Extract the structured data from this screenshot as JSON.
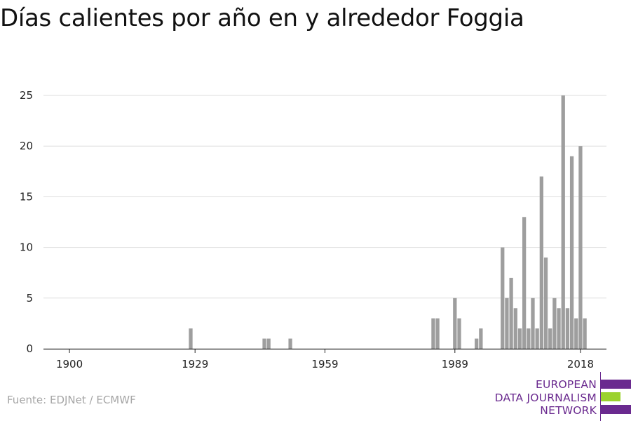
{
  "title": "Días calientes por año en y alrededor Foggia",
  "source": "Fuente: EDJNet / ECMWF",
  "logo": {
    "lines": [
      "EUROPEAN",
      "DATA JOURNALISM",
      "NETWORK"
    ],
    "colors": {
      "purple": "#6a2a8f",
      "green": "#9bd22e"
    }
  },
  "colors": {
    "bar": "#9e9e9e",
    "grid": "#dddddd",
    "axis": "#222222"
  },
  "chart_data": {
    "type": "bar",
    "title": "Días calientes por año en y alrededor Foggia",
    "xlabel": "",
    "ylabel": "",
    "xlim": [
      1894,
      2024
    ],
    "ylim": [
      0,
      25
    ],
    "grid": true,
    "x_ticks": [
      1900,
      1929,
      1959,
      1989,
      2018
    ],
    "y_ticks": [
      0,
      5,
      10,
      15,
      20,
      25
    ],
    "x": [
      1928,
      1945,
      1946,
      1951,
      1984,
      1985,
      1989,
      1990,
      1994,
      1995,
      2000,
      2001,
      2002,
      2003,
      2004,
      2005,
      2006,
      2007,
      2008,
      2009,
      2010,
      2011,
      2012,
      2013,
      2014,
      2015,
      2016,
      2017,
      2018,
      2019
    ],
    "values": [
      2,
      1,
      1,
      1,
      3,
      3,
      5,
      3,
      1,
      2,
      10,
      5,
      7,
      4,
      2,
      13,
      2,
      5,
      2,
      17,
      9,
      2,
      5,
      4,
      25,
      4,
      19,
      3,
      20,
      3
    ]
  }
}
